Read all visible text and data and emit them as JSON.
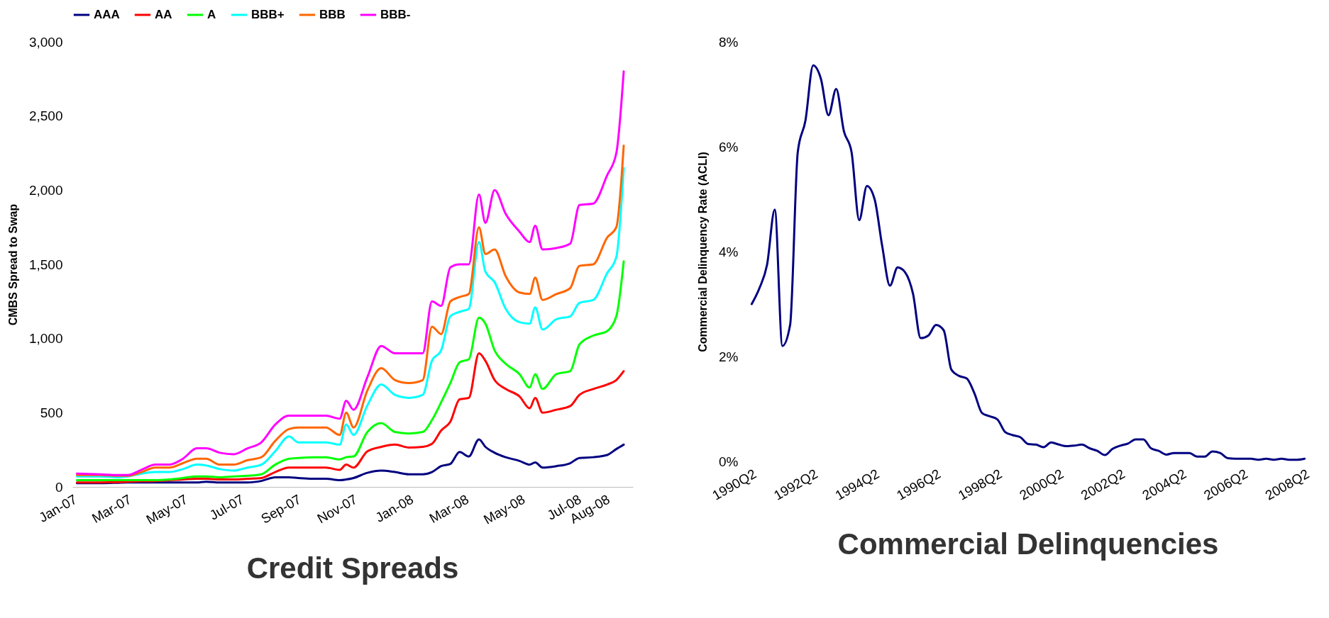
{
  "chart_data": [
    {
      "type": "line",
      "title": "Credit Spreads",
      "ylabel": "CMBS Spread to Swap",
      "legend": "top",
      "x": [
        "2007-01-06",
        "2007-01-31",
        "2007-02-20",
        "2007-03-02",
        "2007-03-17",
        "2007-04-01",
        "2007-04-16",
        "2007-05-01",
        "2007-05-16",
        "2007-05-26",
        "2007-06-10",
        "2007-06-25",
        "2007-07-10",
        "2007-07-25",
        "2007-08-09",
        "2007-08-24",
        "2007-09-03",
        "2007-09-18",
        "2007-10-03",
        "2007-10-18",
        "2007-10-25",
        "2007-11-02",
        "2007-11-17",
        "2007-12-02",
        "2007-12-17",
        "2008-01-01",
        "2008-01-16",
        "2008-01-26",
        "2008-02-05",
        "2008-02-15",
        "2008-02-25",
        "2008-03-06",
        "2008-03-17",
        "2008-03-24",
        "2008-04-03",
        "2008-04-15",
        "2008-04-30",
        "2008-05-11",
        "2008-05-17",
        "2008-05-25",
        "2008-06-09",
        "2008-06-24",
        "2008-07-04",
        "2008-07-19",
        "2008-08-03",
        "2008-08-13",
        "2008-08-21"
      ],
      "xticks": [
        {
          "value": "2007-01-01",
          "label": "Jan-07"
        },
        {
          "value": "2007-03-01",
          "label": "Mar-07"
        },
        {
          "value": "2007-05-01",
          "label": "May-07"
        },
        {
          "value": "2007-07-01",
          "label": "Jul-07"
        },
        {
          "value": "2007-09-01",
          "label": "Sep-07"
        },
        {
          "value": "2007-11-01",
          "label": "Nov-07"
        },
        {
          "value": "2008-01-01",
          "label": "Jan-08"
        },
        {
          "value": "2008-03-01",
          "label": "Mar-08"
        },
        {
          "value": "2008-05-01",
          "label": "May-08"
        },
        {
          "value": "2008-07-01",
          "label": "Jul-08"
        },
        {
          "value": "2008-08-01",
          "label": "Aug-08"
        }
      ],
      "xlim": [
        "2007-01-01",
        "2008-08-31"
      ],
      "ylim": [
        0,
        3000
      ],
      "yticks": [
        0,
        500,
        {
          "value": 1000,
          "label": "1,000"
        },
        {
          "value": 1500,
          "label": "1,500"
        },
        {
          "value": 2000,
          "label": "2,000"
        },
        {
          "value": 2500,
          "label": "2,500"
        },
        {
          "value": 3000,
          "label": "3,000"
        }
      ],
      "series": [
        {
          "name": "AAA",
          "color": "#000080",
          "values": [
            25,
            25,
            28,
            30,
            30,
            30,
            30,
            30,
            30,
            35,
            30,
            30,
            30,
            40,
            65,
            65,
            60,
            55,
            55,
            45,
            50,
            60,
            95,
            110,
            100,
            85,
            85,
            100,
            140,
            155,
            235,
            205,
            320,
            270,
            230,
            200,
            175,
            150,
            165,
            130,
            140,
            160,
            195,
            200,
            215,
            255,
            285
          ]
        },
        {
          "name": "AA",
          "color": "#ff0000",
          "values": [
            30,
            30,
            32,
            35,
            38,
            40,
            45,
            50,
            55,
            55,
            50,
            50,
            55,
            60,
            100,
            130,
            130,
            130,
            130,
            115,
            150,
            130,
            240,
            270,
            285,
            265,
            270,
            290,
            380,
            440,
            590,
            600,
            900,
            850,
            720,
            660,
            610,
            530,
            600,
            500,
            520,
            545,
            620,
            660,
            690,
            720,
            780
          ]
        },
        {
          "name": "A",
          "color": "#00ff00",
          "values": [
            45,
            45,
            45,
            45,
            45,
            45,
            50,
            60,
            70,
            70,
            65,
            70,
            75,
            85,
            150,
            190,
            195,
            200,
            200,
            185,
            200,
            205,
            370,
            430,
            370,
            360,
            370,
            450,
            570,
            700,
            840,
            860,
            1140,
            1100,
            920,
            830,
            760,
            670,
            760,
            660,
            760,
            780,
            960,
            1020,
            1050,
            1150,
            1520
          ]
        },
        {
          "name": "BBB+",
          "color": "#00ffff",
          "values": [
            70,
            70,
            65,
            70,
            90,
            100,
            100,
            120,
            150,
            145,
            120,
            110,
            130,
            150,
            240,
            340,
            300,
            300,
            300,
            285,
            420,
            350,
            550,
            690,
            620,
            600,
            620,
            850,
            920,
            1150,
            1180,
            1200,
            1650,
            1450,
            1380,
            1200,
            1110,
            1100,
            1210,
            1060,
            1130,
            1150,
            1240,
            1260,
            1440,
            1550,
            2150
          ]
        },
        {
          "name": "BBB",
          "color": "#ff6600",
          "values": [
            80,
            80,
            75,
            75,
            100,
            130,
            130,
            160,
            190,
            190,
            150,
            150,
            180,
            200,
            310,
            390,
            400,
            400,
            400,
            350,
            500,
            400,
            650,
            800,
            720,
            700,
            720,
            1080,
            1030,
            1250,
            1280,
            1300,
            1750,
            1570,
            1600,
            1420,
            1310,
            1300,
            1410,
            1260,
            1300,
            1340,
            1490,
            1500,
            1680,
            1750,
            2300
          ]
        },
        {
          "name": "BBB-",
          "color": "#ff00ff",
          "values": [
            90,
            85,
            80,
            80,
            115,
            150,
            150,
            190,
            260,
            260,
            230,
            220,
            260,
            300,
            420,
            480,
            480,
            480,
            480,
            460,
            580,
            520,
            740,
            950,
            900,
            900,
            900,
            1250,
            1220,
            1480,
            1500,
            1500,
            1970,
            1780,
            2000,
            1840,
            1720,
            1650,
            1760,
            1600,
            1610,
            1640,
            1900,
            1910,
            2100,
            2250,
            2800
          ]
        }
      ]
    },
    {
      "type": "line",
      "title": "Commercial Delinquencies",
      "ylabel": "Commercial Delinquency Rate (ACLI)",
      "categories": [
        "1990Q2",
        null,
        null,
        null,
        null,
        null,
        null,
        null,
        "1992Q2",
        null,
        null,
        null,
        null,
        null,
        null,
        null,
        "1994Q2",
        null,
        null,
        null,
        null,
        null,
        null,
        null,
        "1996Q2",
        null,
        null,
        null,
        null,
        null,
        null,
        null,
        "1998Q2",
        null,
        null,
        null,
        null,
        null,
        null,
        null,
        "2000Q2",
        null,
        null,
        null,
        null,
        null,
        null,
        null,
        "2002Q2",
        null,
        null,
        null,
        null,
        null,
        null,
        null,
        "2004Q2",
        null,
        null,
        null,
        null,
        null,
        null,
        null,
        "2006Q2",
        null,
        null,
        null,
        null,
        null,
        null,
        null,
        "2008Q2"
      ],
      "ylim": [
        0,
        8
      ],
      "yticks": [
        {
          "value": 0,
          "label": "0%"
        },
        {
          "value": 2,
          "label": "2%"
        },
        {
          "value": 4,
          "label": "4%"
        },
        {
          "value": 6,
          "label": "6%"
        },
        {
          "value": 8,
          "label": "8%"
        }
      ],
      "series": [
        {
          "color": "#000080",
          "values": [
            3.0,
            3.3,
            3.75,
            4.8,
            2.2,
            2.6,
            5.9,
            6.5,
            7.55,
            7.3,
            6.6,
            7.1,
            6.3,
            5.9,
            4.6,
            5.25,
            5.0,
            4.1,
            3.35,
            3.7,
            3.6,
            3.2,
            2.35,
            2.4,
            2.6,
            2.5,
            1.75,
            1.63,
            1.58,
            1.3,
            0.92,
            0.86,
            0.8,
            0.56,
            0.5,
            0.46,
            0.33,
            0.32,
            0.27,
            0.36,
            0.32,
            0.29,
            0.3,
            0.32,
            0.25,
            0.2,
            0.12,
            0.24,
            0.3,
            0.34,
            0.42,
            0.42,
            0.25,
            0.2,
            0.13,
            0.16,
            0.16,
            0.16,
            0.09,
            0.09,
            0.19,
            0.16,
            0.06,
            0.05,
            0.05,
            0.05,
            0.03,
            0.05,
            0.03,
            0.05,
            0.03,
            0.03,
            0.05
          ]
        }
      ]
    }
  ]
}
